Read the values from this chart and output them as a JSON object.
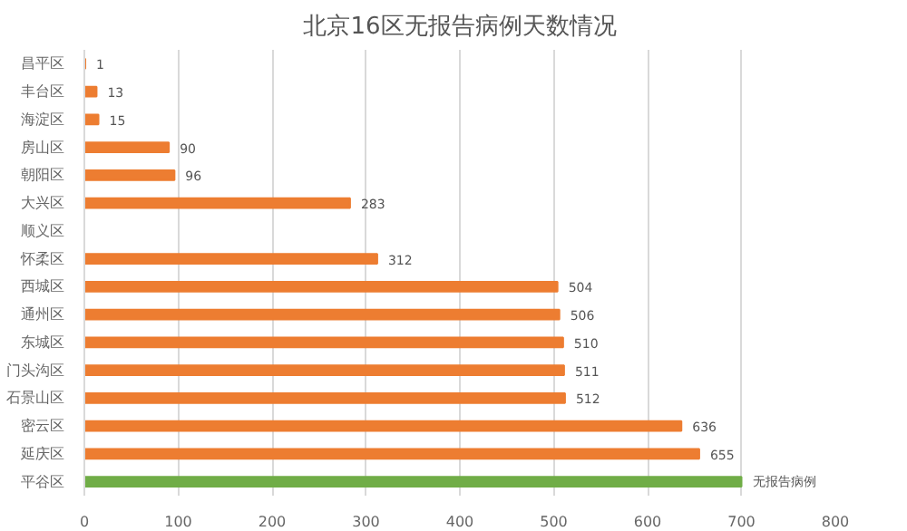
{
  "chart_data": {
    "type": "bar",
    "orientation": "horizontal",
    "title": "北京16区无报告病例天数情况",
    "categories": [
      "昌平区",
      "丰台区",
      "海淀区",
      "房山区",
      "朝阳区",
      "大兴区",
      "顺义区",
      "怀柔区",
      "西城区",
      "通州区",
      "东城区",
      "门头沟区",
      "石景山区",
      "密云区",
      "延庆区",
      "平谷区"
    ],
    "values": [
      1,
      13,
      15,
      90,
      96,
      283,
      null,
      312,
      504,
      506,
      510,
      511,
      512,
      636,
      655,
      700
    ],
    "value_labels": [
      "1",
      "13",
      "15",
      "90",
      "96",
      "283",
      null,
      "312",
      "504",
      "506",
      "510",
      "511",
      "512",
      "636",
      "655",
      "无报告病例"
    ],
    "colors": [
      "#ed7d31",
      "#ed7d31",
      "#ed7d31",
      "#ed7d31",
      "#ed7d31",
      "#ed7d31",
      "#ed7d31",
      "#ed7d31",
      "#ed7d31",
      "#ed7d31",
      "#ed7d31",
      "#ed7d31",
      "#ed7d31",
      "#ed7d31",
      "#ed7d31",
      "#70ad47"
    ],
    "xlim": [
      0,
      800
    ],
    "xticks": [
      0,
      100,
      200,
      300,
      400,
      500,
      600,
      700,
      800
    ],
    "grid": "x"
  }
}
